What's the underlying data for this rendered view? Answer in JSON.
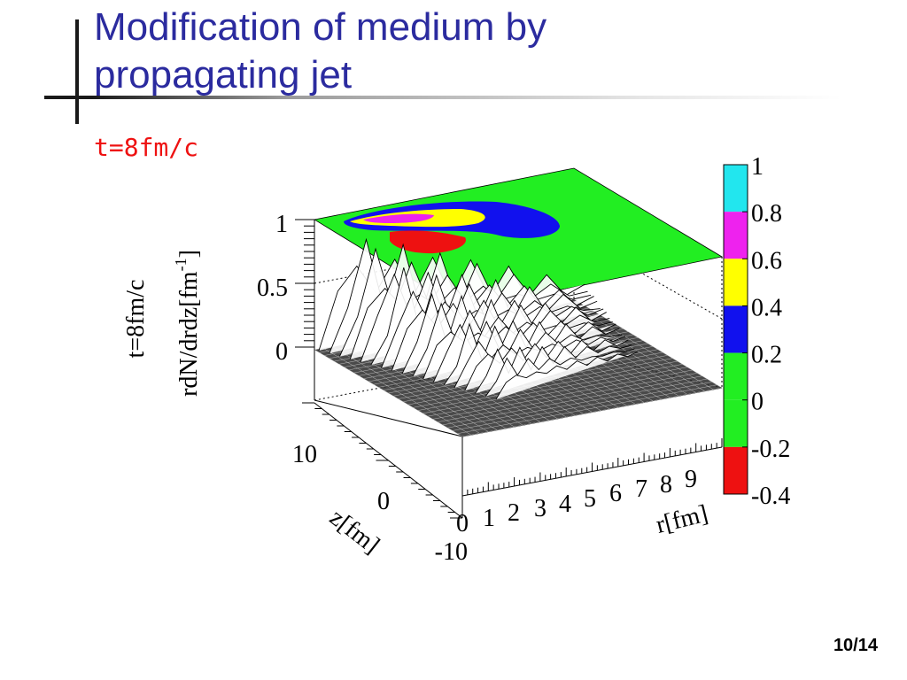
{
  "slide": {
    "title": "Modification of medium by propagating jet",
    "subtitle": "t=8fm/c",
    "page_number": "10/14"
  },
  "chart_data": {
    "type": "surface",
    "title": "",
    "zlabel_line1": "t=8fm/c",
    "zlabel_line2": "rdN/drdz[fm",
    "zlabel_sup": "-1",
    "zlabel_end": "]",
    "xlabel": "r[fm]",
    "ylabel": "z[fm]",
    "x_ticks": [
      "0",
      "1",
      "2",
      "3",
      "4",
      "5",
      "6",
      "7",
      "8",
      "9"
    ],
    "xlim": [
      0,
      10
    ],
    "y_ticks": [
      "10",
      "0",
      "-10"
    ],
    "ylim": [
      -10,
      10
    ],
    "z_ticks": [
      "1",
      "0.5",
      "0"
    ],
    "zlim": [
      -0.4,
      1
    ],
    "colorbar": {
      "labels": [
        "1",
        "0.8",
        "0.6",
        "0.4",
        "0.2",
        "0",
        "-0.2",
        "-0.4"
      ],
      "levels": [
        {
          "from": 0.8,
          "to": 1.0,
          "color": "#22e6ee"
        },
        {
          "from": 0.6,
          "to": 0.8,
          "color": "#ee22ee"
        },
        {
          "from": 0.4,
          "to": 0.6,
          "color": "#ffff00"
        },
        {
          "from": 0.2,
          "to": 0.4,
          "color": "#1111ee"
        },
        {
          "from": 0.0,
          "to": 0.2,
          "color": "#22ee22"
        },
        {
          "from": -0.2,
          "to": 0.0,
          "color": "#22ee22"
        },
        {
          "from": -0.4,
          "to": -0.2,
          "color": "#ee1111"
        }
      ]
    },
    "grid": true,
    "peak_value": 1.0
  }
}
